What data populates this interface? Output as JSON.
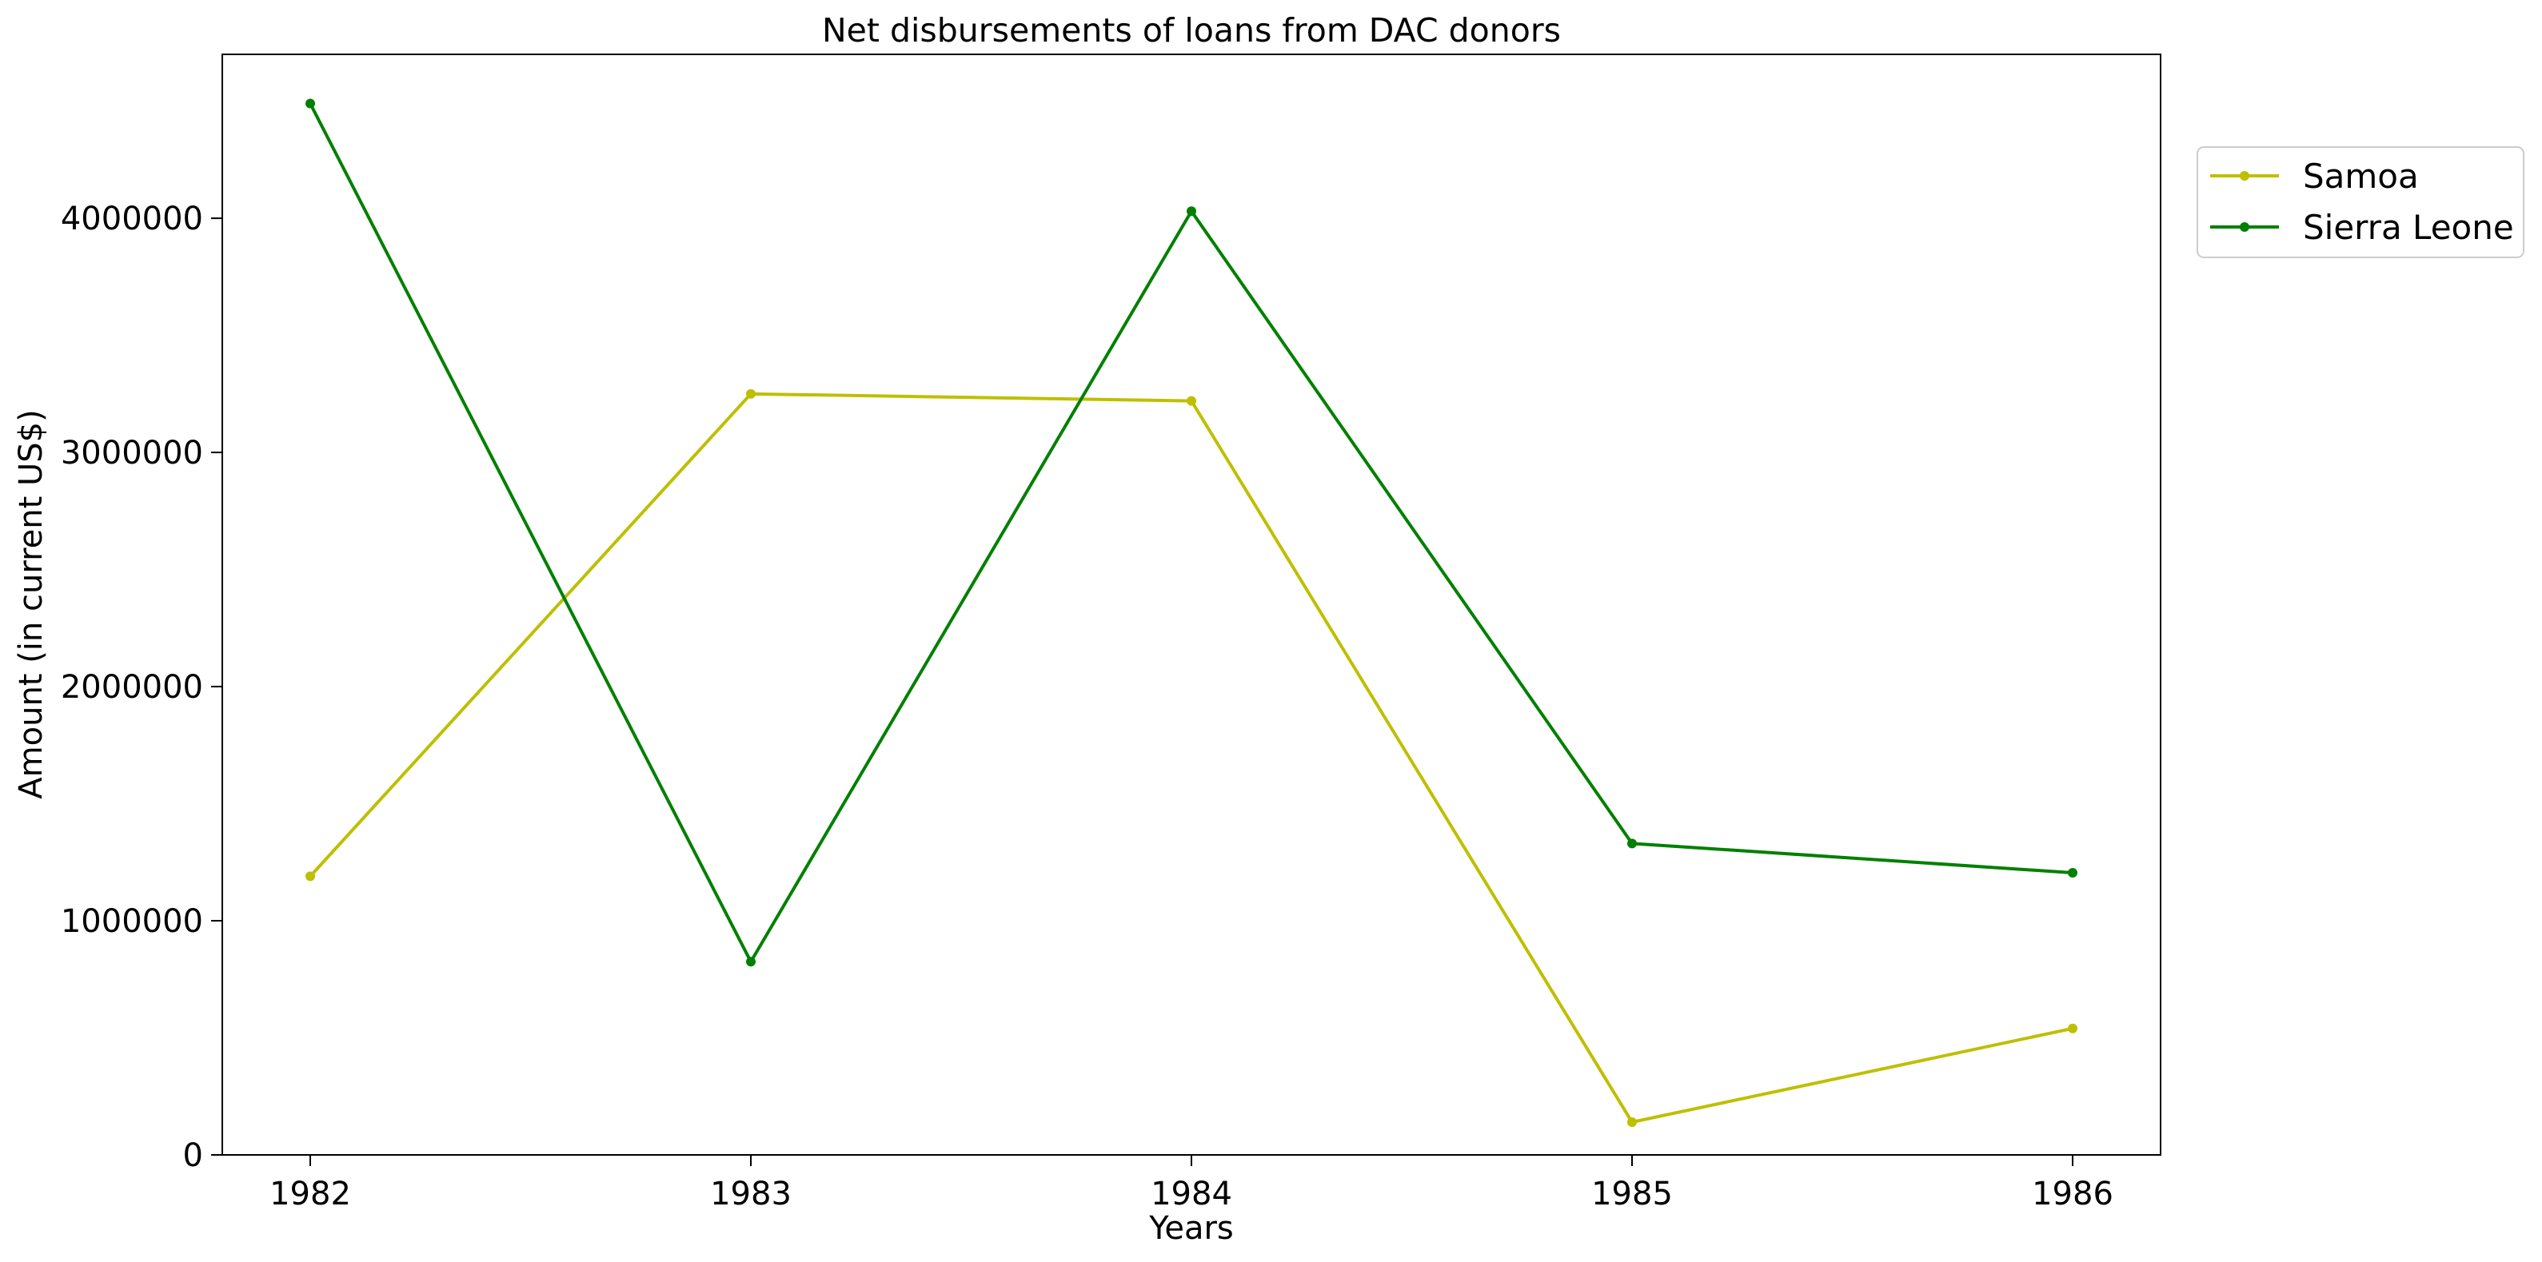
{
  "chart_data": {
    "type": "line",
    "title": "Net disbursements of loans from DAC donors",
    "xlabel": "Years",
    "ylabel": "Amount (in current US$)",
    "categories": [
      "1982",
      "1983",
      "1984",
      "1985",
      "1986"
    ],
    "x_tick_labels": [
      "1982",
      "1983",
      "1984",
      "1985",
      "1986"
    ],
    "y_tick_labels": [
      "0",
      "1000000",
      "2000000",
      "3000000",
      "4000000"
    ],
    "ylim": [
      0,
      4700000
    ],
    "grid": false,
    "legend_position": "outside-top-right",
    "series": [
      {
        "name": "Samoa",
        "color": "#bfbf00",
        "values": [
          1190000,
          3250000,
          3220000,
          140000,
          540000
        ]
      },
      {
        "name": "Sierra Leone",
        "color": "#008000",
        "values": [
          4490000,
          825000,
          4030000,
          1330000,
          1205000
        ]
      }
    ]
  }
}
